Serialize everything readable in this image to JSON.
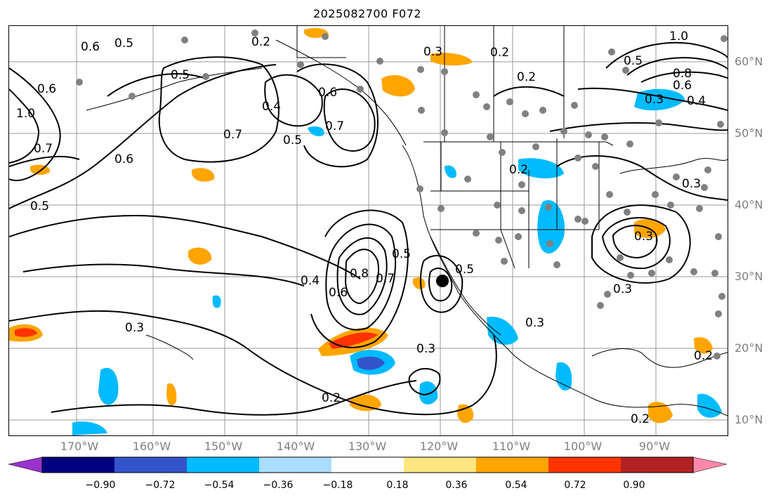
{
  "title": "2025082700 F072",
  "map": {
    "latitude_labels": [
      "60°N",
      "50°N",
      "40°N",
      "30°N",
      "20°N",
      "10°N"
    ],
    "longitude_labels": [
      "170°W",
      "160°W",
      "150°W",
      "140°W",
      "130°W",
      "120°W",
      "110°W",
      "100°W",
      "90°W"
    ],
    "contour_labels": [
      "0.6",
      "0.5",
      "0.2",
      "0.3",
      "0.2",
      "0.2",
      "0.5",
      "1.0",
      "0.8",
      "0.6",
      "0.4",
      "0.6",
      "1.0",
      "0.7",
      "0.5",
      "0.5",
      "0.4",
      "0.6",
      "0.7",
      "0.7",
      "0.6",
      "0.3",
      "0.5",
      "0.2",
      "0.3",
      "0.4",
      "0.6",
      "0.8",
      "0.5",
      "0.7",
      "0.5",
      "0.3",
      "0.3",
      "0.3",
      "0.3",
      "0.2",
      "0.3",
      "0.2",
      "0.2"
    ],
    "colors": {
      "land_lines": "#000000",
      "contours": "#000000",
      "gridlines": "#999999",
      "stations": "#808080"
    }
  },
  "colorbar": {
    "tick_labels": [
      "−0.90",
      "−0.72",
      "−0.54",
      "−0.36",
      "−0.18",
      "0.18",
      "0.36",
      "0.54",
      "0.72",
      "0.90"
    ],
    "colors": [
      "#9933cc",
      "#000080",
      "#3355cc",
      "#00bbff",
      "#aaddff",
      "#ffffff",
      "#ffe680",
      "#ffa500",
      "#ff3300",
      "#b22222",
      "#ff88aa"
    ]
  }
}
